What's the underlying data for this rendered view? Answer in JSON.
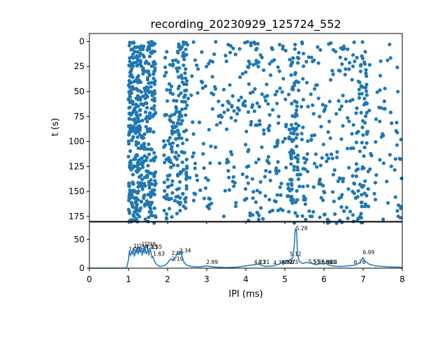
{
  "chart_data": [
    {
      "type": "scatter",
      "title": "recording_20230929_125724_552",
      "xlabel": "",
      "ylabel": "t (s)",
      "xlim": [
        0,
        8
      ],
      "ylim": [
        180,
        -8
      ],
      "y_inverted": true,
      "y_ticks": [
        0,
        25,
        50,
        75,
        100,
        125,
        150,
        175
      ],
      "x_tick_labels_shown": false,
      "color": "#1f77b4",
      "marker": "circle",
      "grid": false,
      "description_of_points": "Dense raster of inter-spike intervals vs time; dense bands near IPI 1.0-1.7 ms and 2.0-2.5 ms, vertical streaks near 4.2, 5.25, 6.0 and 7.0 ms, sparse points elsewhere between 3 and 8 ms over t = 0-182 s.",
      "point_sets": [
        {
          "name": "",
          "x_range": [
            1.0,
            1.05
          ],
          "t_range": [
            0,
            180
          ],
          "count": 60
        },
        {
          "name": "",
          "x_range": [
            1.05,
            1.3
          ],
          "t_range": [
            0,
            182
          ],
          "count": 180
        },
        {
          "name": "",
          "x_range": [
            1.3,
            1.7
          ],
          "t_range": [
            0,
            182
          ],
          "count": 220
        },
        {
          "name": "",
          "x_range": [
            1.9,
            2.25
          ],
          "t_range": [
            10,
            182
          ],
          "count": 90
        },
        {
          "name": "",
          "x_range": [
            2.25,
            2.5
          ],
          "t_range": [
            0,
            170
          ],
          "count": 110
        },
        {
          "name": "",
          "x_range": [
            2.5,
            4.0
          ],
          "t_range": [
            0,
            182
          ],
          "count": 120
        },
        {
          "name": "",
          "x_range": [
            4.0,
            4.4
          ],
          "t_range": [
            0,
            180
          ],
          "count": 60
        },
        {
          "name": "",
          "x_range": [
            4.4,
            5.15
          ],
          "t_range": [
            0,
            180
          ],
          "count": 90
        },
        {
          "name": "",
          "x_range": [
            5.15,
            5.35
          ],
          "t_range": [
            0,
            182
          ],
          "count": 80
        },
        {
          "name": "",
          "x_range": [
            5.35,
            6.8
          ],
          "t_range": [
            0,
            182
          ],
          "count": 170
        },
        {
          "name": "",
          "x_range": [
            6.8,
            7.1
          ],
          "t_range": [
            0,
            182
          ],
          "count": 80
        },
        {
          "name": "",
          "x_range": [
            7.1,
            8.0
          ],
          "t_range": [
            0,
            182
          ],
          "count": 60
        }
      ]
    },
    {
      "type": "line",
      "title": "",
      "xlabel": "IPI (ms)",
      "ylabel": "",
      "xlim": [
        0,
        8
      ],
      "ylim": [
        0,
        80
      ],
      "x_ticks": [
        0,
        1,
        2,
        3,
        4,
        5,
        6,
        7,
        8
      ],
      "y_ticks": [
        0,
        50
      ],
      "color": "#1f77b4",
      "grid": false,
      "x": [
        0,
        0.5,
        0.95,
        1.0,
        1.02,
        1.05,
        1.08,
        1.1,
        1.12,
        1.15,
        1.18,
        1.2,
        1.22,
        1.25,
        1.28,
        1.3,
        1.32,
        1.35,
        1.38,
        1.4,
        1.42,
        1.45,
        1.48,
        1.5,
        1.52,
        1.55,
        1.58,
        1.6,
        1.63,
        1.66,
        1.7,
        1.75,
        1.8,
        1.9,
        1.95,
        2.0,
        2.05,
        2.1,
        2.15,
        2.2,
        2.25,
        2.3,
        2.34,
        2.38,
        2.42,
        2.5,
        2.6,
        2.8,
        2.99,
        3.2,
        3.5,
        3.8,
        4.1,
        4.21,
        4.31,
        4.5,
        4.7,
        4.8,
        4.92,
        4.97,
        5.03,
        5.12,
        5.2,
        5.24,
        5.26,
        5.28,
        5.3,
        5.32,
        5.36,
        5.45,
        5.55,
        5.65,
        5.8,
        5.9,
        6.0,
        6.04,
        6.1,
        6.2,
        6.4,
        6.6,
        6.76,
        6.85,
        6.92,
        6.99,
        7.05,
        7.15,
        7.3,
        7.5,
        7.7,
        7.9,
        8.0
      ],
      "y": [
        0,
        0,
        0,
        15,
        30,
        22,
        28,
        25,
        35,
        20,
        30,
        26,
        36,
        24,
        33,
        27,
        37,
        22,
        35,
        26,
        38,
        24,
        30,
        32,
        22,
        36,
        25,
        18,
        20,
        12,
        8,
        5,
        3,
        4,
        6,
        9,
        14,
        16,
        13,
        18,
        28,
        24,
        30,
        18,
        10,
        5,
        3,
        2,
        4,
        2,
        1,
        2,
        5,
        6,
        7,
        3,
        4,
        6,
        9,
        12,
        10,
        14,
        18,
        40,
        65,
        70,
        60,
        25,
        12,
        8,
        10,
        9,
        6,
        8,
        7,
        9,
        6,
        4,
        3,
        4,
        5,
        7,
        10,
        18,
        12,
        7,
        4,
        3,
        2,
        2,
        1
      ],
      "annotations": [
        {
          "x": 1.0,
          "y": 30,
          "text": "1.09"
        },
        {
          "x": 1.13,
          "y": 35,
          "text": "1.2"
        },
        {
          "x": 1.2,
          "y": 34,
          "text": "1.34"
        },
        {
          "x": 1.33,
          "y": 38,
          "text": "1.3"
        },
        {
          "x": 1.4,
          "y": 38,
          "text": "1.38"
        },
        {
          "x": 1.45,
          "y": 33,
          "text": "1.43"
        },
        {
          "x": 1.56,
          "y": 34,
          "text": "1.55"
        },
        {
          "x": 1.63,
          "y": 22,
          "text": "1.63"
        },
        {
          "x": 2.1,
          "y": 23,
          "text": "2.09"
        },
        {
          "x": 2.1,
          "y": 13,
          "text": "2.19"
        },
        {
          "x": 2.3,
          "y": 27,
          "text": "2.34"
        },
        {
          "x": 2.99,
          "y": 7,
          "text": "2.99"
        },
        {
          "x": 4.21,
          "y": 7,
          "text": "4.21"
        },
        {
          "x": 4.31,
          "y": 7,
          "text": "4.31"
        },
        {
          "x": 4.7,
          "y": 6,
          "text": "4.78"
        },
        {
          "x": 4.9,
          "y": 7,
          "text": "4.92"
        },
        {
          "x": 4.96,
          "y": 7,
          "text": "4.97"
        },
        {
          "x": 5.03,
          "y": 7,
          "text": "5.03"
        },
        {
          "x": 5.12,
          "y": 21,
          "text": "5.12"
        },
        {
          "x": 5.28,
          "y": 66,
          "text": "5.28"
        },
        {
          "x": 5.6,
          "y": 8,
          "text": "5.55"
        },
        {
          "x": 5.72,
          "y": 8,
          "text": "5.66"
        },
        {
          "x": 5.93,
          "y": 7,
          "text": "5.96"
        },
        {
          "x": 6.04,
          "y": 7,
          "text": "6.04"
        },
        {
          "x": 6.1,
          "y": 7,
          "text": "6.1"
        },
        {
          "x": 6.76,
          "y": 7,
          "text": "6.76"
        },
        {
          "x": 6.99,
          "y": 24,
          "text": "6.99"
        }
      ]
    }
  ]
}
